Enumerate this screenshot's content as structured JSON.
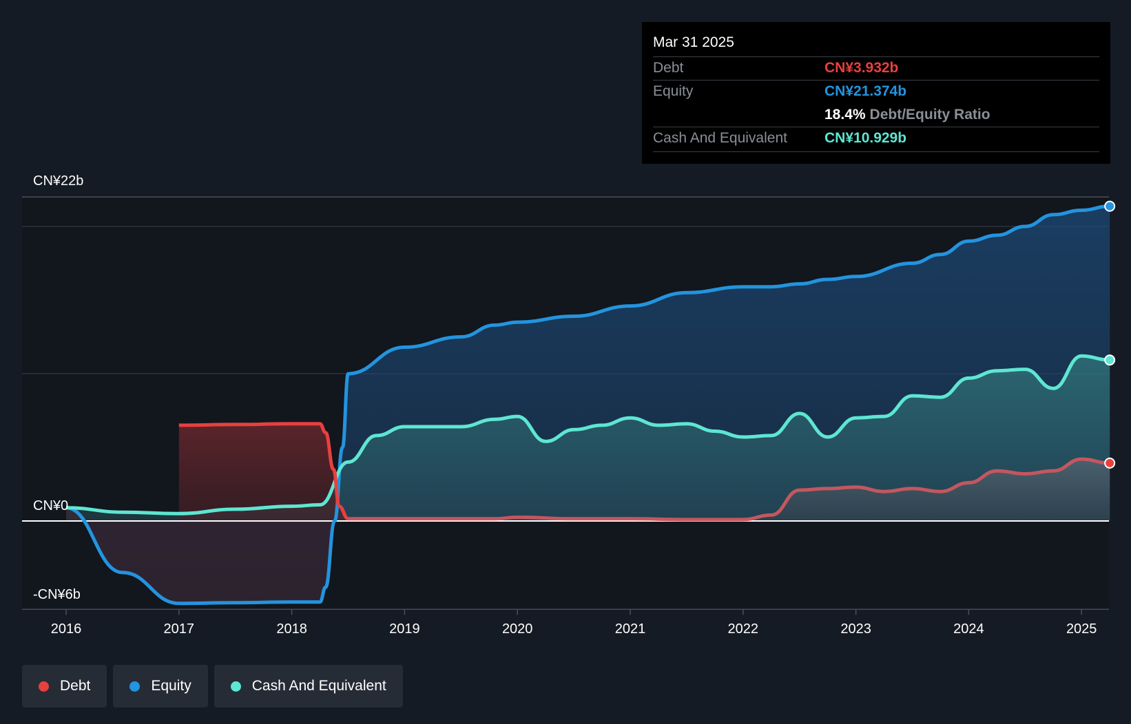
{
  "chart_data": {
    "type": "area",
    "y_labels": {
      "top": "CN¥22b",
      "zero": "CN¥0",
      "bottom": "-CN¥6b"
    },
    "ylim": [
      -6,
      22
    ],
    "x_ticks": [
      "2016",
      "2017",
      "2018",
      "2019",
      "2020",
      "2021",
      "2022",
      "2023",
      "2024",
      "2025"
    ],
    "series": [
      {
        "name": "Debt",
        "color": "#e8403f",
        "points": [
          [
            2017.0,
            6.5
          ],
          [
            2017.5,
            6.55
          ],
          [
            2018.0,
            6.6
          ],
          [
            2018.25,
            6.6
          ],
          [
            2018.3,
            6.0
          ],
          [
            2018.37,
            3.5
          ],
          [
            2018.42,
            1.0
          ],
          [
            2018.5,
            0.15
          ],
          [
            2019.0,
            0.15
          ],
          [
            2019.5,
            0.15
          ],
          [
            2019.8,
            0.15
          ],
          [
            2020.0,
            0.25
          ],
          [
            2020.5,
            0.15
          ],
          [
            2021.0,
            0.15
          ],
          [
            2021.5,
            0.1
          ],
          [
            2022.0,
            0.1
          ],
          [
            2022.25,
            0.4
          ],
          [
            2022.5,
            2.1
          ],
          [
            2022.75,
            2.2
          ],
          [
            2023.0,
            2.3
          ],
          [
            2023.25,
            2.0
          ],
          [
            2023.5,
            2.2
          ],
          [
            2023.75,
            2.0
          ],
          [
            2024.0,
            2.6
          ],
          [
            2024.25,
            3.4
          ],
          [
            2024.5,
            3.2
          ],
          [
            2024.75,
            3.4
          ],
          [
            2025.0,
            4.2
          ],
          [
            2025.25,
            3.932
          ]
        ]
      },
      {
        "name": "Equity",
        "color": "#2394df",
        "points": [
          [
            2016.0,
            0.9
          ],
          [
            2016.5,
            -3.5
          ],
          [
            2017.0,
            -5.6
          ],
          [
            2017.5,
            -5.55
          ],
          [
            2018.0,
            -5.5
          ],
          [
            2018.25,
            -5.5
          ],
          [
            2018.3,
            -4.5
          ],
          [
            2018.38,
            0
          ],
          [
            2018.45,
            5.0
          ],
          [
            2018.5,
            10.0
          ],
          [
            2019.0,
            11.8
          ],
          [
            2019.5,
            12.5
          ],
          [
            2019.8,
            13.3
          ],
          [
            2020.0,
            13.5
          ],
          [
            2020.5,
            13.9
          ],
          [
            2021.0,
            14.6
          ],
          [
            2021.5,
            15.5
          ],
          [
            2022.0,
            15.9
          ],
          [
            2022.25,
            15.9
          ],
          [
            2022.5,
            16.1
          ],
          [
            2022.75,
            16.4
          ],
          [
            2023.0,
            16.6
          ],
          [
            2023.5,
            17.5
          ],
          [
            2023.75,
            18.1
          ],
          [
            2024.0,
            19.0
          ],
          [
            2024.25,
            19.4
          ],
          [
            2024.5,
            20.0
          ],
          [
            2024.75,
            20.8
          ],
          [
            2025.0,
            21.1
          ],
          [
            2025.25,
            21.374
          ]
        ]
      },
      {
        "name": "Cash And Equivalent",
        "color": "#5ee6d2",
        "points": [
          [
            2016.0,
            0.9
          ],
          [
            2016.5,
            0.6
          ],
          [
            2017.0,
            0.5
          ],
          [
            2017.5,
            0.8
          ],
          [
            2018.0,
            1.0
          ],
          [
            2018.25,
            1.1
          ],
          [
            2018.5,
            4.0
          ],
          [
            2018.75,
            5.8
          ],
          [
            2019.0,
            6.4
          ],
          [
            2019.5,
            6.4
          ],
          [
            2019.8,
            6.9
          ],
          [
            2020.0,
            7.1
          ],
          [
            2020.25,
            5.4
          ],
          [
            2020.5,
            6.2
          ],
          [
            2020.75,
            6.5
          ],
          [
            2021.0,
            7.0
          ],
          [
            2021.25,
            6.5
          ],
          [
            2021.5,
            6.6
          ],
          [
            2021.75,
            6.1
          ],
          [
            2022.0,
            5.7
          ],
          [
            2022.25,
            5.8
          ],
          [
            2022.5,
            7.3
          ],
          [
            2022.75,
            5.7
          ],
          [
            2023.0,
            7.0
          ],
          [
            2023.25,
            7.1
          ],
          [
            2023.5,
            8.5
          ],
          [
            2023.75,
            8.4
          ],
          [
            2024.0,
            9.7
          ],
          [
            2024.25,
            10.2
          ],
          [
            2024.5,
            10.3
          ],
          [
            2024.75,
            9.0
          ],
          [
            2025.0,
            11.2
          ],
          [
            2025.25,
            10.929
          ]
        ]
      }
    ]
  },
  "tooltip": {
    "date": "Mar 31 2025",
    "debt_label": "Debt",
    "debt_value": "CN¥3.932b",
    "equity_label": "Equity",
    "equity_value": "CN¥21.374b",
    "ratio_value": "18.4%",
    "ratio_label": "Debt/Equity Ratio",
    "cash_label": "Cash And Equivalent",
    "cash_value": "CN¥10.929b"
  },
  "legend": [
    {
      "label": "Debt",
      "color": "#e8403f"
    },
    {
      "label": "Equity",
      "color": "#2394df"
    },
    {
      "label": "Cash And Equivalent",
      "color": "#5ee6d2"
    }
  ]
}
